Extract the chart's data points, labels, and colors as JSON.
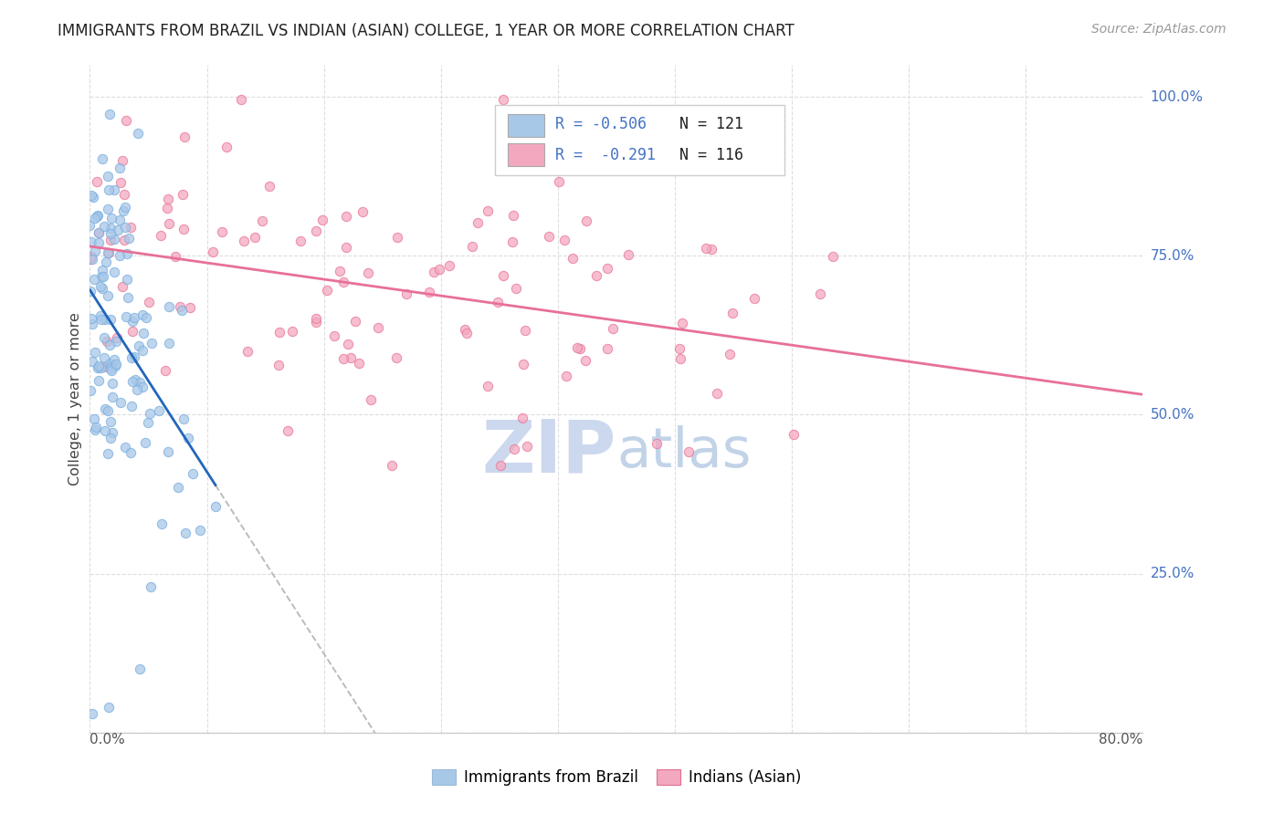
{
  "title": "IMMIGRANTS FROM BRAZIL VS INDIAN (ASIAN) COLLEGE, 1 YEAR OR MORE CORRELATION CHART",
  "source": "Source: ZipAtlas.com",
  "ylabel": "College, 1 year or more",
  "legend_brazil_label": "Immigrants from Brazil",
  "legend_indian_label": "Indians (Asian)",
  "brazil_R": -0.506,
  "brazil_N": 121,
  "indian_R": -0.291,
  "indian_N": 116,
  "brazil_color": "#a8c8e8",
  "brazil_edge_color": "#7aafe0",
  "indian_color": "#f4a8c0",
  "indian_edge_color": "#e87898",
  "brazil_line_color": "#2266bb",
  "indian_line_color": "#e87098",
  "dash_color": "#aaaaaa",
  "watermark_color": "#ccd8ee",
  "xmin": 0.0,
  "xmax": 0.8,
  "ymin": 0.0,
  "ymax": 1.05,
  "brazil_seed": 7,
  "indian_seed": 13,
  "grid_color": "#dddddd",
  "right_label_color": "#4472c4",
  "spine_color": "#cccccc"
}
